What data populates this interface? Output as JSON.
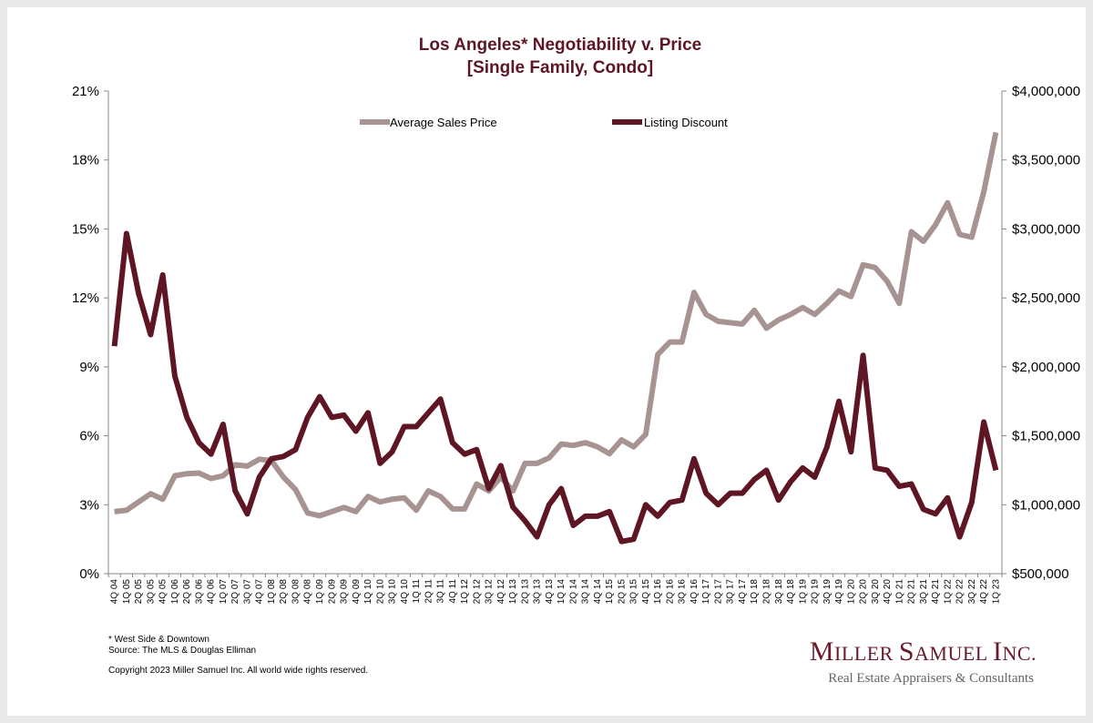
{
  "chart_data": {
    "type": "line",
    "title": "Los Angeles* Negotiability v. Price",
    "subtitle": "[Single Family, Condo]",
    "left_axis": {
      "ylim": [
        0,
        21
      ],
      "ticks": [
        0,
        3,
        6,
        9,
        12,
        15,
        18,
        21
      ],
      "tick_labels": [
        "0%",
        "3%",
        "6%",
        "9%",
        "12%",
        "15%",
        "18%",
        "21%"
      ]
    },
    "right_axis": {
      "ylim": [
        500000,
        4000000
      ],
      "ticks": [
        500000,
        1000000,
        1500000,
        2000000,
        2500000,
        3000000,
        3500000,
        4000000
      ],
      "tick_labels": [
        "$500,000",
        "$1,000,000",
        "$1,500,000",
        "$2,000,000",
        "$2,500,000",
        "$3,000,000",
        "$3,500,000",
        "$4,000,000"
      ]
    },
    "categories": [
      "4Q 04",
      "1Q 05",
      "2Q 05",
      "3Q 05",
      "4Q 05",
      "1Q 06",
      "2Q 06",
      "3Q 06",
      "4Q 06",
      "1Q 07",
      "2Q 07",
      "3Q 07",
      "4Q 07",
      "1Q 08",
      "2Q 08",
      "3Q 08",
      "4Q 08",
      "1Q 09",
      "2Q 09",
      "3Q 09",
      "4Q 09",
      "1Q 10",
      "2Q 10",
      "3Q 10",
      "4Q 10",
      "1Q 11",
      "2Q 11",
      "3Q 11",
      "4Q 11",
      "1Q 12",
      "2Q 12",
      "3Q 12",
      "4Q 12",
      "1Q 13",
      "2Q 13",
      "3Q 13",
      "4Q 13",
      "1Q 14",
      "2Q 14",
      "3Q 14",
      "4Q 14",
      "1Q 15",
      "2Q 15",
      "3Q 15",
      "4Q 15",
      "1Q 16",
      "2Q 16",
      "3Q 16",
      "4Q 16",
      "1Q 17",
      "2Q 17",
      "3Q 17",
      "4Q 17",
      "1Q 18",
      "2Q 18",
      "3Q 18",
      "4Q 18",
      "1Q 19",
      "2Q 19",
      "3Q 19",
      "4Q 19",
      "1Q 20",
      "2Q 20",
      "3Q 20",
      "4Q 20",
      "1Q 21",
      "2Q 21",
      "3Q 21",
      "4Q 21",
      "1Q 22",
      "2Q 22",
      "3Q 22",
      "4Q 22",
      "1Q 23"
    ],
    "series": [
      {
        "name": "Average Sales Price",
        "axis": "right",
        "color": "#a89393",
        "values": [
          950000,
          960000,
          1020000,
          1080000,
          1040000,
          1210000,
          1225000,
          1230000,
          1190000,
          1210000,
          1290000,
          1280000,
          1330000,
          1320000,
          1200000,
          1110000,
          940000,
          920000,
          950000,
          980000,
          950000,
          1060000,
          1020000,
          1040000,
          1050000,
          960000,
          1100000,
          1060000,
          970000,
          970000,
          1150000,
          1100000,
          1200000,
          1100000,
          1300000,
          1300000,
          1340000,
          1440000,
          1430000,
          1450000,
          1420000,
          1370000,
          1470000,
          1420000,
          1510000,
          2090000,
          2180000,
          2180000,
          2540000,
          2380000,
          2330000,
          2320000,
          2310000,
          2410000,
          2280000,
          2340000,
          2380000,
          2430000,
          2380000,
          2460000,
          2550000,
          2510000,
          2740000,
          2720000,
          2620000,
          2460000,
          2980000,
          2910000,
          3030000,
          3190000,
          2960000,
          2940000,
          3270000,
          3700000
        ]
      },
      {
        "name": "Listing Discount",
        "axis": "left",
        "color": "#5e1624",
        "values": [
          9.9,
          14.8,
          12.2,
          10.4,
          13.0,
          8.6,
          6.8,
          5.7,
          5.2,
          6.5,
          3.6,
          2.6,
          4.2,
          5.0,
          5.1,
          5.4,
          6.8,
          7.7,
          6.8,
          6.9,
          6.2,
          7.0,
          4.8,
          5.3,
          6.4,
          6.4,
          7.0,
          7.6,
          5.7,
          5.2,
          5.4,
          3.7,
          4.7,
          2.9,
          2.3,
          1.6,
          3.0,
          3.7,
          2.1,
          2.5,
          2.5,
          2.7,
          1.4,
          1.5,
          3.0,
          2.5,
          3.1,
          3.2,
          5.0,
          3.5,
          3.0,
          3.5,
          3.5,
          4.1,
          4.5,
          3.2,
          4.0,
          4.6,
          4.2,
          5.5,
          7.5,
          5.3,
          9.5,
          4.6,
          4.5,
          3.8,
          3.9,
          2.8,
          2.6,
          3.3,
          1.6,
          3.1,
          6.6,
          4.5
        ]
      }
    ],
    "legend_position": "top",
    "grid": false
  },
  "footnotes": {
    "note": "* West Side & Downtown",
    "source": "Source: The MLS & Douglas Elliman",
    "copyright": "Copyright 2023 Miller Samuel Inc.  All world wide rights reserved."
  },
  "brand": {
    "name": "Miller Samuel Inc.",
    "tagline": "Real Estate Appraisers & Consultants"
  }
}
